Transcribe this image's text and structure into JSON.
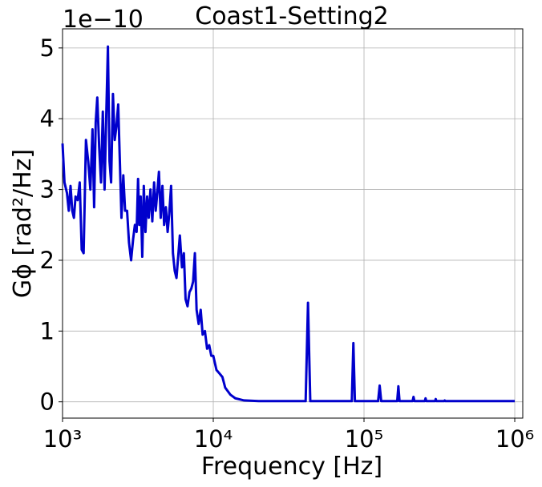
{
  "chart_data": {
    "type": "line",
    "title": "Coast1-Setting2",
    "xlabel": "Frequency [Hz]",
    "ylabel": "Gϕ [rad²/Hz]",
    "y_offset_text": "1e−10",
    "xscale": "log",
    "grid": true,
    "xlim": [
      1000,
      1130000
    ],
    "ylim": [
      -0.23,
      5.27
    ],
    "xticks": [
      {
        "value": 1000,
        "label": "10³"
      },
      {
        "value": 10000,
        "label": "10⁴"
      },
      {
        "value": 100000,
        "label": "10⁵"
      },
      {
        "value": 1000000,
        "label": "10⁶"
      }
    ],
    "yticks": [
      0,
      1,
      2,
      3,
      4,
      5
    ],
    "x": [
      1000,
      1030,
      1070,
      1100,
      1130,
      1160,
      1190,
      1220,
      1260,
      1300,
      1340,
      1380,
      1430,
      1480,
      1530,
      1580,
      1620,
      1660,
      1700,
      1750,
      1800,
      1850,
      1900,
      1950,
      2000,
      2050,
      2100,
      2160,
      2220,
      2280,
      2340,
      2400,
      2460,
      2530,
      2600,
      2680,
      2760,
      2850,
      2940,
      3020,
      3100,
      3170,
      3230,
      3300,
      3380,
      3460,
      3550,
      3640,
      3730,
      3830,
      3940,
      4050,
      4150,
      4250,
      4360,
      4480,
      4600,
      4720,
      4850,
      4980,
      5100,
      5250,
      5400,
      5550,
      5700,
      5850,
      6000,
      6200,
      6380,
      6550,
      6750,
      6950,
      7150,
      7350,
      7550,
      7750,
      8000,
      8250,
      8500,
      8800,
      9100,
      9400,
      9700,
      10000,
      10500,
      11000,
      11500,
      12000,
      13000,
      14000,
      16000,
      20000,
      30000,
      41000,
      42500,
      44000,
      83000,
      85000,
      87000,
      124000,
      127000,
      130000,
      166000,
      169000,
      172000,
      210000,
      213000,
      216000,
      253000,
      256000,
      259000,
      296000,
      299000,
      302000,
      340000,
      343000,
      346000,
      1000000
    ],
    "series": [
      {
        "name": "Gϕ",
        "color": "#0000cc",
        "values": [
          3.65,
          3.1,
          2.95,
          2.7,
          3.05,
          2.7,
          2.6,
          2.9,
          2.85,
          3.1,
          2.15,
          2.1,
          3.7,
          3.4,
          3.0,
          3.85,
          2.75,
          3.95,
          4.3,
          3.6,
          3.1,
          4.1,
          3.0,
          4.05,
          5.02,
          3.4,
          3.1,
          4.35,
          3.7,
          3.9,
          4.2,
          3.4,
          2.6,
          3.2,
          2.7,
          2.7,
          2.25,
          2.0,
          2.3,
          2.5,
          2.4,
          3.15,
          2.5,
          2.9,
          2.05,
          3.05,
          2.4,
          2.9,
          2.6,
          3.0,
          2.55,
          3.1,
          2.7,
          2.95,
          3.25,
          2.6,
          3.05,
          2.5,
          2.75,
          2.4,
          2.65,
          3.05,
          2.1,
          1.85,
          1.75,
          2.05,
          2.35,
          1.9,
          2.1,
          1.45,
          1.35,
          1.55,
          1.6,
          1.7,
          2.1,
          1.3,
          1.1,
          1.3,
          0.95,
          1.0,
          0.75,
          0.8,
          0.65,
          0.65,
          0.45,
          0.4,
          0.35,
          0.2,
          0.1,
          0.05,
          0.02,
          0.01,
          0.01,
          0.01,
          1.4,
          0.01,
          0.01,
          0.83,
          0.01,
          0.01,
          0.23,
          0.01,
          0.01,
          0.22,
          0.01,
          0.01,
          0.07,
          0.01,
          0.01,
          0.05,
          0.01,
          0.01,
          0.04,
          0.01,
          0.01,
          0.02,
          0.01,
          0.01
        ]
      }
    ]
  }
}
